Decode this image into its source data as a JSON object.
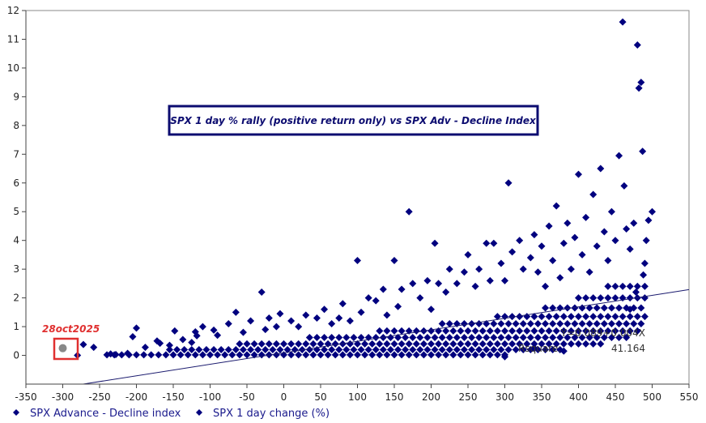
{
  "chart_data": {
    "type": "scatter",
    "title": "SPX 1 day % rally (positive return only) vs SPX Adv - Decline Index",
    "xlabel": "",
    "ylabel": "",
    "xlim": [
      -350,
      550
    ],
    "ylim": [
      -1,
      12
    ],
    "x_ticks": [
      -350,
      -300,
      -250,
      -200,
      -150,
      -100,
      -50,
      0,
      50,
      100,
      150,
      200,
      250,
      300,
      350,
      400,
      450,
      500,
      550
    ],
    "y_ticks": [
      0,
      1,
      2,
      3,
      4,
      5,
      6,
      7,
      8,
      9,
      10,
      11,
      12
    ],
    "grid": false,
    "legend": {
      "placement": "bottom",
      "entries": [
        "SPX Advance - Decline index",
        "SPX 1 day change (%)"
      ]
    },
    "colors": {
      "points": "#00007f",
      "highlight": "#888888",
      "annotation": "#e03030",
      "line": "#1a1a6e"
    },
    "regression": {
      "equation": "Y=0.089+0.004X",
      "intercept": 0.089,
      "slope": 0.004,
      "rsquare_label": "Rsquare:",
      "rsquare_value": "41.164"
    },
    "highlight": {
      "label": "28oct2025",
      "x": -300,
      "y": 0.25
    },
    "band_rows": [
      {
        "y": 0.02,
        "x": [
          -240,
          -230,
          -220,
          -210,
          -200,
          -190,
          -180,
          -170,
          -160,
          -150,
          -140,
          -130,
          -120,
          -110,
          -100,
          -90,
          -80,
          -70,
          -60,
          -50,
          -40,
          -30,
          -20,
          -10,
          0,
          10,
          20,
          30,
          40,
          50,
          60,
          70,
          80,
          90,
          100,
          110,
          120,
          130,
          140,
          150,
          160,
          170,
          180,
          190,
          200,
          210,
          220,
          230,
          240,
          250,
          260,
          270,
          280,
          290,
          300
        ]
      },
      {
        "y": 0.2,
        "x": [
          -155,
          -145,
          -135,
          -125,
          -115,
          -105,
          -95,
          -85,
          -75,
          -65,
          -55,
          -45,
          -35,
          -25,
          -15,
          -5,
          5,
          15,
          25,
          35,
          45,
          55,
          65,
          75,
          85,
          95,
          105,
          115,
          125,
          135,
          145,
          155,
          165,
          175,
          185,
          195,
          205,
          215,
          225,
          235,
          245,
          255,
          265,
          275,
          285,
          295,
          305,
          315,
          325,
          335,
          345,
          355,
          365,
          375
        ]
      },
      {
        "y": 0.4,
        "x": [
          -60,
          -50,
          -40,
          -30,
          -20,
          -10,
          0,
          10,
          20,
          30,
          40,
          50,
          60,
          70,
          80,
          90,
          100,
          110,
          120,
          130,
          140,
          150,
          160,
          170,
          180,
          190,
          200,
          210,
          220,
          230,
          240,
          250,
          260,
          270,
          280,
          290,
          300,
          310,
          320,
          330,
          340,
          350,
          360,
          370,
          380,
          390,
          400,
          410,
          420,
          430
        ]
      },
      {
        "y": 0.62,
        "x": [
          35,
          45,
          55,
          65,
          75,
          85,
          95,
          105,
          115,
          125,
          135,
          145,
          155,
          165,
          175,
          185,
          195,
          205,
          215,
          225,
          235,
          245,
          255,
          265,
          275,
          285,
          295,
          305,
          315,
          325,
          335,
          345,
          355,
          365,
          375,
          385,
          395,
          405,
          415,
          425,
          435,
          445,
          455,
          465
        ]
      },
      {
        "y": 0.85,
        "x": [
          130,
          140,
          150,
          160,
          170,
          180,
          190,
          200,
          210,
          220,
          230,
          240,
          250,
          260,
          270,
          280,
          290,
          300,
          310,
          320,
          330,
          340,
          350,
          360,
          370,
          380,
          390,
          400,
          410,
          420,
          430,
          440,
          450,
          460,
          470,
          480
        ]
      },
      {
        "y": 1.1,
        "x": [
          215,
          225,
          235,
          245,
          255,
          265,
          275,
          285,
          295,
          305,
          315,
          325,
          335,
          345,
          355,
          365,
          375,
          385,
          395,
          405,
          415,
          425,
          435,
          445,
          455,
          465,
          475,
          485
        ]
      },
      {
        "y": 1.35,
        "x": [
          290,
          300,
          310,
          320,
          330,
          340,
          350,
          360,
          370,
          380,
          390,
          400,
          410,
          420,
          430,
          440,
          450,
          460,
          470,
          480,
          490
        ]
      },
      {
        "y": 1.65,
        "x": [
          355,
          365,
          375,
          385,
          395,
          405,
          415,
          425,
          435,
          445,
          455,
          465,
          475,
          485
        ]
      },
      {
        "y": 2.0,
        "x": [
          400,
          410,
          420,
          430,
          440,
          450,
          460,
          470,
          480,
          490
        ]
      },
      {
        "y": 2.4,
        "x": [
          440,
          450,
          460,
          470,
          480,
          490
        ]
      }
    ],
    "points": [
      [
        -280,
        0
      ],
      [
        -272,
        0.38
      ],
      [
        -258,
        0.28
      ],
      [
        -235,
        0.05
      ],
      [
        -228,
        0.03
      ],
      [
        -212,
        0.07
      ],
      [
        -205,
        0.65
      ],
      [
        -200,
        0.95
      ],
      [
        -188,
        0.28
      ],
      [
        -172,
        0.5
      ],
      [
        -168,
        0.42
      ],
      [
        -155,
        0.35
      ],
      [
        -148,
        0.85
      ],
      [
        -137,
        0.55
      ],
      [
        -125,
        0.45
      ],
      [
        -120,
        0.82
      ],
      [
        -118,
        0.68
      ],
      [
        -110,
        1.0
      ],
      [
        -95,
        0.88
      ],
      [
        -90,
        0.7
      ],
      [
        -75,
        1.1
      ],
      [
        -65,
        1.5
      ],
      [
        -55,
        0.8
      ],
      [
        -45,
        1.2
      ],
      [
        -30,
        2.2
      ],
      [
        -25,
        0.9
      ],
      [
        -20,
        1.3
      ],
      [
        -10,
        1.0
      ],
      [
        -5,
        1.45
      ],
      [
        10,
        1.2
      ],
      [
        20,
        1.0
      ],
      [
        30,
        1.4
      ],
      [
        45,
        1.3
      ],
      [
        55,
        1.6
      ],
      [
        65,
        1.1
      ],
      [
        75,
        1.3
      ],
      [
        80,
        1.8
      ],
      [
        90,
        1.2
      ],
      [
        100,
        3.3
      ],
      [
        105,
        1.5
      ],
      [
        115,
        2.0
      ],
      [
        125,
        1.9
      ],
      [
        135,
        2.3
      ],
      [
        140,
        1.4
      ],
      [
        150,
        3.3
      ],
      [
        155,
        1.7
      ],
      [
        160,
        2.3
      ],
      [
        170,
        5.0
      ],
      [
        175,
        2.5
      ],
      [
        185,
        2.0
      ],
      [
        195,
        2.6
      ],
      [
        200,
        1.6
      ],
      [
        205,
        3.9
      ],
      [
        210,
        2.5
      ],
      [
        220,
        2.2
      ],
      [
        225,
        3.0
      ],
      [
        235,
        2.5
      ],
      [
        245,
        2.9
      ],
      [
        250,
        3.5
      ],
      [
        260,
        2.4
      ],
      [
        265,
        3.0
      ],
      [
        275,
        3.9
      ],
      [
        280,
        2.6
      ],
      [
        285,
        3.9
      ],
      [
        295,
        3.2
      ],
      [
        300,
        2.6
      ],
      [
        305,
        6.0
      ],
      [
        310,
        3.6
      ],
      [
        320,
        4.0
      ],
      [
        325,
        3.0
      ],
      [
        335,
        3.4
      ],
      [
        340,
        4.2
      ],
      [
        345,
        2.9
      ],
      [
        350,
        3.8
      ],
      [
        355,
        2.4
      ],
      [
        360,
        4.5
      ],
      [
        365,
        3.3
      ],
      [
        370,
        5.2
      ],
      [
        375,
        2.7
      ],
      [
        380,
        3.9
      ],
      [
        385,
        4.6
      ],
      [
        390,
        3.0
      ],
      [
        395,
        4.1
      ],
      [
        400,
        6.3
      ],
      [
        405,
        3.5
      ],
      [
        410,
        4.8
      ],
      [
        415,
        2.9
      ],
      [
        420,
        5.6
      ],
      [
        425,
        3.8
      ],
      [
        430,
        6.5
      ],
      [
        435,
        4.3
      ],
      [
        440,
        3.3
      ],
      [
        445,
        5.0
      ],
      [
        450,
        4.0
      ],
      [
        455,
        6.95
      ],
      [
        460,
        11.6
      ],
      [
        462,
        5.9
      ],
      [
        465,
        4.4
      ],
      [
        470,
        3.7
      ],
      [
        475,
        4.6
      ],
      [
        480,
        10.8
      ],
      [
        482,
        9.3
      ],
      [
        485,
        9.5
      ],
      [
        487,
        7.1
      ],
      [
        490,
        3.2
      ],
      [
        492,
        4.0
      ],
      [
        495,
        4.7
      ],
      [
        500,
        5.0
      ],
      [
        488,
        2.8
      ],
      [
        478,
        2.2
      ],
      [
        470,
        1.6
      ],
      [
        300,
        -0.05
      ],
      [
        340,
        0.25
      ],
      [
        380,
        0.15
      ]
    ]
  }
}
